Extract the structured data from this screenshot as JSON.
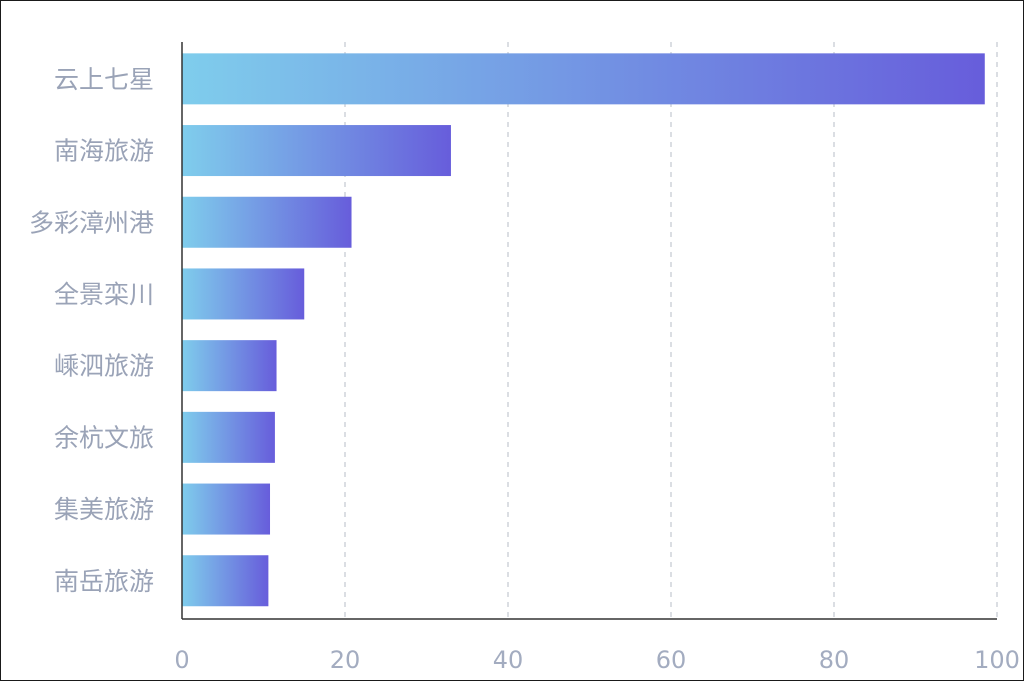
{
  "chart_data": {
    "type": "bar",
    "orientation": "horizontal",
    "categories": [
      "云上七星",
      "南海旅游",
      "多彩漳州港",
      "全景栾川",
      "嵊泗旅游",
      "余杭文旅",
      "集美旅游",
      "南岳旅游"
    ],
    "values": [
      98.5,
      33,
      20.8,
      15,
      11.6,
      11.4,
      10.8,
      10.6
    ],
    "xlim": [
      0,
      100
    ],
    "xticks": [
      "0",
      "20",
      "40",
      "60",
      "80",
      "100"
    ],
    "grid": "vertical dashed",
    "title": "",
    "xlabel": "",
    "ylabel": "",
    "colors": {
      "bar_gradient_start": "#7fcdec",
      "bar_gradient_end": "#675ddb",
      "grid": "#cfd3da",
      "axis": "#333333",
      "label": "#9aa3b7"
    }
  }
}
